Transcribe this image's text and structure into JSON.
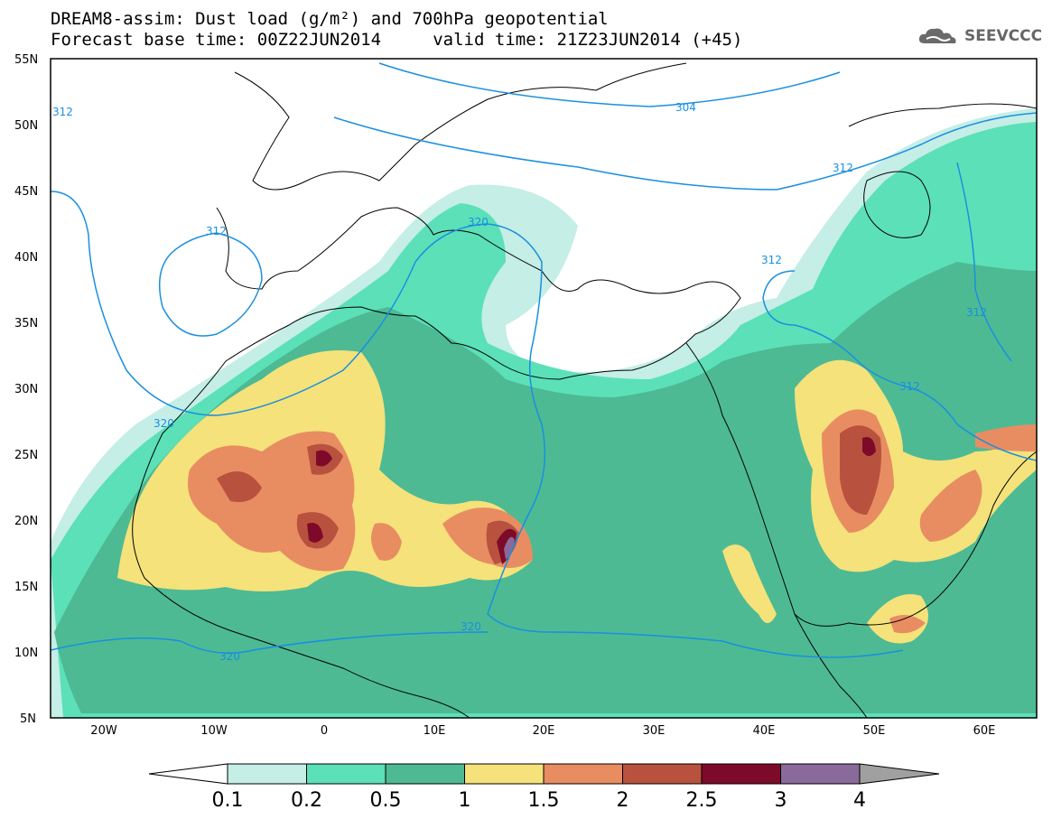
{
  "title": {
    "line1": "DREAM8-assim: Dust load (g/m²) and 700hPa geopotential",
    "line2": "Forecast base time: 00Z22JUN2014     valid time: 21Z23JUN2014 (+45)"
  },
  "logo": {
    "text": "SEEVCCC",
    "icon": "cloud-logo-icon"
  },
  "map": {
    "lat_labels": [
      "55N",
      "50N",
      "45N",
      "40N",
      "35N",
      "30N",
      "25N",
      "20N",
      "15N",
      "10N",
      "5N"
    ],
    "lon_labels": [
      "20W",
      "10W",
      "0",
      "10E",
      "20E",
      "30E",
      "40E",
      "50E",
      "60E"
    ],
    "contour_labels": [
      "304",
      "312",
      "312",
      "312",
      "312",
      "312",
      "312",
      "320",
      "320",
      "320",
      "320"
    ],
    "colors": {
      "contour": "#1a8fe0",
      "ocean": "#ffffff",
      "coastline": "#000000"
    }
  },
  "colorbar": {
    "labels": [
      "0.1",
      "0.2",
      "0.5",
      "1",
      "1.5",
      "2",
      "2.5",
      "3",
      "4"
    ],
    "colors": [
      "#c4eee6",
      "#5ce0b8",
      "#4dba94",
      "#f5e27a",
      "#e88d62",
      "#b8523e",
      "#7e0a2a",
      "#8a6a9a",
      "#a0a0a0"
    ]
  }
}
